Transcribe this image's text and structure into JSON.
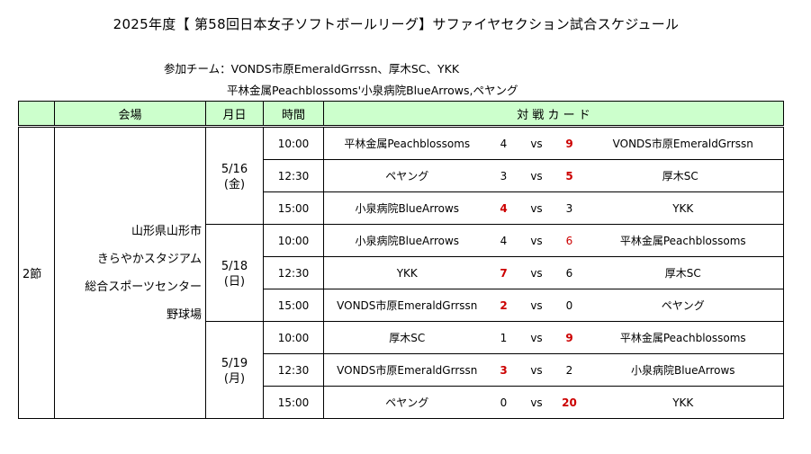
{
  "title": "2025年度【 第58回日本女子ソフトボールリーグ】サファイヤセクション試合スケジュール",
  "participants": {
    "line1": "参加チーム：VONDS市原EmeraldGrrssn、厚木SC、YKK",
    "line2": "平林金属Peachblossoms'小泉病院BlueArrows,ペヤング"
  },
  "headers": {
    "venue": "会場",
    "date": "月日",
    "time": "時間",
    "matchup": "対 戦 カ ー ド"
  },
  "section": "2節",
  "venue_lines": [
    "山形県山形市",
    "きらやかスタジアム",
    "総合スポーツセンター",
    "野球場"
  ],
  "dates": [
    {
      "date": "5/16",
      "weekday": "(金)"
    },
    {
      "date": "5/18",
      "weekday": "(日)"
    },
    {
      "date": "5/19",
      "weekday": "(月)"
    }
  ],
  "vs_label": "vs",
  "games": [
    {
      "time": "10:00",
      "home": "平林金属Peachblossoms",
      "home_score": "4",
      "away_score": "9",
      "away": "VONDS市原EmeraldGrrssn",
      "winner": "away"
    },
    {
      "time": "12:30",
      "home": "ペヤング",
      "home_score": "3",
      "away_score": "5",
      "away": "厚木SC",
      "winner": "away"
    },
    {
      "time": "15:00",
      "home": "小泉病院BlueArrows",
      "home_score": "4",
      "away_score": "3",
      "away": "YKK",
      "winner": "home"
    },
    {
      "time": "10:00",
      "home": "小泉病院BlueArrows",
      "home_score": "4",
      "away_score": "6",
      "away": "平林金属Peachblossoms",
      "winner": "away"
    },
    {
      "time": "12:30",
      "home": "YKK",
      "home_score": "7",
      "away_score": "6",
      "away": "厚木SC",
      "winner": "home"
    },
    {
      "time": "15:00",
      "home": "VONDS市原EmeraldGrrssn",
      "home_score": "2",
      "away_score": "0",
      "away": "ペヤング",
      "winner": "home"
    },
    {
      "time": "10:00",
      "home": "厚木SC",
      "home_score": "1",
      "away_score": "9",
      "away": "平林金属Peachblossoms",
      "winner": "away"
    },
    {
      "time": "12:30",
      "home": "VONDS市原EmeraldGrrssn",
      "home_score": "3",
      "away_score": "2",
      "away": "小泉病院BlueArrows",
      "winner": "home"
    },
    {
      "time": "15:00",
      "home": "ペヤング",
      "home_score": "0",
      "away_score": "20",
      "away": "YKK",
      "winner": "away"
    }
  ],
  "colors": {
    "header_bg": "#ccffcc",
    "winner_score": "#cc0000"
  }
}
